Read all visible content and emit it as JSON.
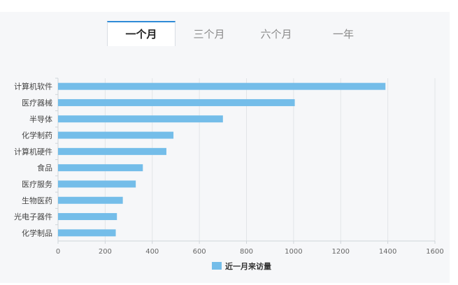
{
  "tabs": [
    {
      "label": "一个月",
      "active": true
    },
    {
      "label": "三个月",
      "active": false
    },
    {
      "label": "六个月",
      "active": false
    },
    {
      "label": "一年",
      "active": false
    }
  ],
  "colors": {
    "bar": "#74bde9",
    "grid": "#e2e5e8",
    "axis": "#cfd4d9",
    "tab_accent": "#2f8bd6"
  },
  "chart_data": {
    "type": "bar",
    "orientation": "horizontal",
    "categories": [
      "计算机软件",
      "医疗器械",
      "半导体",
      "化学制药",
      "计算机硬件",
      "食品",
      "医疗服务",
      "生物医药",
      "光电子器件",
      "化学制品"
    ],
    "series": [
      {
        "name": "近一月来访量",
        "values": [
          1390,
          1005,
          700,
          490,
          460,
          360,
          330,
          275,
          250,
          245
        ]
      }
    ],
    "xlim": [
      0,
      1600
    ],
    "xticks": [
      0,
      200,
      400,
      600,
      800,
      1000,
      1200,
      1400,
      1600
    ],
    "grid": true,
    "legend": "bottom-center"
  }
}
